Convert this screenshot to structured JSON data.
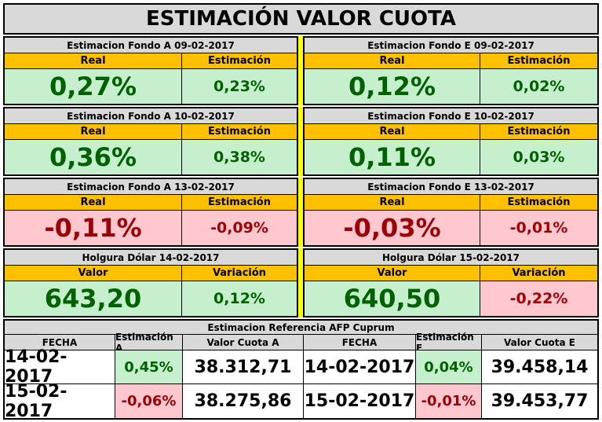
{
  "title": "ESTIMACIÓN VALOR CUOTA",
  "blocks": [
    {
      "left": {
        "header": "Estimacion Fondo A  09-02-2017",
        "col1": "Real",
        "col2": "Estimación",
        "v1": "0,27%",
        "v2": "0,23%",
        "tone1": "pos",
        "tone2": "pos"
      },
      "right": {
        "header": "Estimacion Fondo E  09-02-2017",
        "col1": "Real",
        "col2": "Estimación",
        "v1": "0,12%",
        "v2": "0,02%",
        "tone1": "pos",
        "tone2": "pos"
      }
    },
    {
      "left": {
        "header": "Estimacion Fondo A  10-02-2017",
        "col1": "Real",
        "col2": "Estimación",
        "v1": "0,36%",
        "v2": "0,38%",
        "tone1": "pos",
        "tone2": "pos"
      },
      "right": {
        "header": "Estimacion Fondo E  10-02-2017",
        "col1": "Real",
        "col2": "Estimación",
        "v1": "0,11%",
        "v2": "0,03%",
        "tone1": "pos",
        "tone2": "pos"
      }
    },
    {
      "left": {
        "header": "Estimacion Fondo A  13-02-2017",
        "col1": "Real",
        "col2": "Estimación",
        "v1": "-0,11%",
        "v2": "-0,09%",
        "tone1": "neg",
        "tone2": "neg"
      },
      "right": {
        "header": "Estimacion Fondo E  13-02-2017",
        "col1": "Real",
        "col2": "Estimación",
        "v1": "-0,03%",
        "v2": "-0,01%",
        "tone1": "neg",
        "tone2": "neg"
      }
    },
    {
      "left": {
        "header": "Holgura Dólar 14-02-2017",
        "col1": "Valor",
        "col2": "Variación",
        "v1": "643,20",
        "v2": "0,12%",
        "tone1": "pos",
        "tone2": "pos"
      },
      "right": {
        "header": "Holgura Dólar 15-02-2017",
        "col1": "Valor",
        "col2": "Variación",
        "v1": "640,50",
        "v2": "-0,22%",
        "tone1": "pos",
        "tone2": "neg"
      }
    }
  ],
  "reference": {
    "header": "Estimacion Referencia AFP Cuprum",
    "columns": [
      "FECHA",
      "Estimación A",
      "Valor Cuota A",
      "FECHA",
      "Estimación E",
      "Valor Cuota E"
    ],
    "rows": [
      {
        "fecha_a": "14-02-2017",
        "est_a": "0,45%",
        "tone_a": "pos",
        "cuota_a": "38.312,71",
        "fecha_e": "14-02-2017",
        "est_e": "0,04%",
        "tone_e": "pos",
        "cuota_e": "39.458,14"
      },
      {
        "fecha_a": "15-02-2017",
        "est_a": "-0,06%",
        "tone_a": "neg",
        "cuota_a": "38.275,86",
        "fecha_e": "15-02-2017",
        "est_e": "-0,01%",
        "tone_e": "neg",
        "cuota_e": "39.453,77"
      }
    ]
  },
  "colors": {
    "positive_bg": "#c6efce",
    "positive_fg": "#006100",
    "negative_bg": "#ffc7ce",
    "negative_fg": "#9c0006",
    "header_bg": "#d9d9d9",
    "subheader_bg": "#ffc000",
    "separator": "#ffff00"
  }
}
